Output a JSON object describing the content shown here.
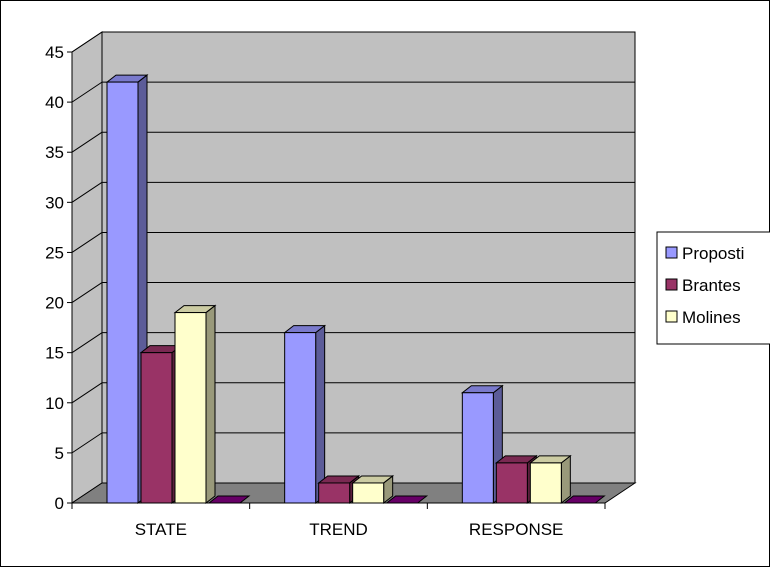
{
  "chart_data": {
    "type": "bar",
    "title": "",
    "xlabel": "",
    "ylabel": "",
    "ylim": [
      0,
      45
    ],
    "ytick_step": 5,
    "grid": true,
    "legend_position": "right",
    "categories": [
      "STATE",
      "TREND",
      "RESPONSE"
    ],
    "series": [
      {
        "name": "Proposti",
        "color": "#9999ff",
        "values": [
          42,
          17,
          11
        ]
      },
      {
        "name": "Brantes",
        "color": "#993366",
        "values": [
          15,
          2,
          4
        ]
      },
      {
        "name": "Molines",
        "color": "#ffffcc",
        "values": [
          19,
          2,
          4
        ]
      },
      {
        "name": "",
        "color": "#660066",
        "values": [
          0,
          0,
          0
        ]
      }
    ],
    "colors": {
      "wall": "#c0c0c0",
      "floor": "#808080",
      "border": "#000000"
    }
  }
}
